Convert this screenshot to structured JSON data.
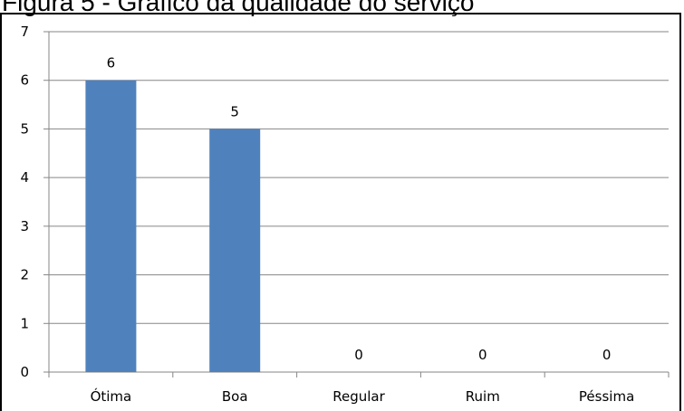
{
  "caption": "Figura 5 - Gráfico da qualidade do serviço",
  "chart_data": {
    "type": "bar",
    "categories": [
      "Ótima",
      "Boa",
      "Regular",
      "Ruim",
      "Péssima"
    ],
    "values": [
      6,
      5,
      0,
      0,
      0
    ],
    "title": "",
    "xlabel": "",
    "ylabel": "",
    "ylim": [
      0,
      7
    ],
    "yticks": [
      0,
      1,
      2,
      3,
      4,
      5,
      6,
      7
    ],
    "grid": true,
    "data_labels": true,
    "legend": "none",
    "bar_color": "#4f81bd",
    "grid_color": "#868686"
  }
}
